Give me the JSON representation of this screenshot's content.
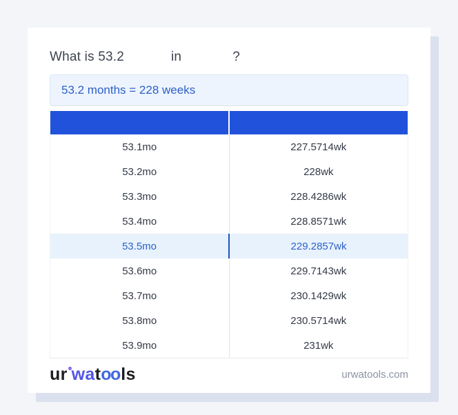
{
  "title": {
    "prefix": "What is 53.2",
    "infix": "in",
    "suffix": "?"
  },
  "result": {
    "text": "53.2 months = 228 weeks",
    "background": "#edf4fd",
    "text_color": "#2d5fc8"
  },
  "table": {
    "header": {
      "col1": "",
      "col2": "",
      "background": "#2152dc"
    },
    "rows": [
      {
        "months": "53.1mo",
        "weeks": "227.5714wk"
      },
      {
        "months": "53.2mo",
        "weeks": "228wk"
      },
      {
        "months": "53.3mo",
        "weeks": "228.4286wk"
      },
      {
        "months": "53.4mo",
        "weeks": "228.8571wk"
      },
      {
        "months": "53.5mo",
        "weeks": "229.2857wk",
        "highlighted": true
      },
      {
        "months": "53.6mo",
        "weeks": "229.7143wk"
      },
      {
        "months": "53.7mo",
        "weeks": "230.1429wk"
      },
      {
        "months": "53.8mo",
        "weeks": "230.5714wk"
      },
      {
        "months": "53.9mo",
        "weeks": "231wk"
      }
    ],
    "highlight": {
      "background": "#e8f2fd",
      "text_color": "#2c62c8",
      "divider_color": "#1d54c0"
    }
  },
  "footer": {
    "logo": {
      "part1": "ur",
      "part2": "wa",
      "part3": "t",
      "part4": "oo",
      "part5": "ls",
      "accent_purple": "#5156e5",
      "accent_blue": "#4168e1"
    },
    "site": "urwatools.com"
  },
  "colors": {
    "page_background": "#f3f5f9",
    "card_background": "#ffffff",
    "card_shadow": "#dbe0ee",
    "header_blue": "#2152dc",
    "row_text": "#343a46",
    "column_divider": "#e3e5e9"
  }
}
